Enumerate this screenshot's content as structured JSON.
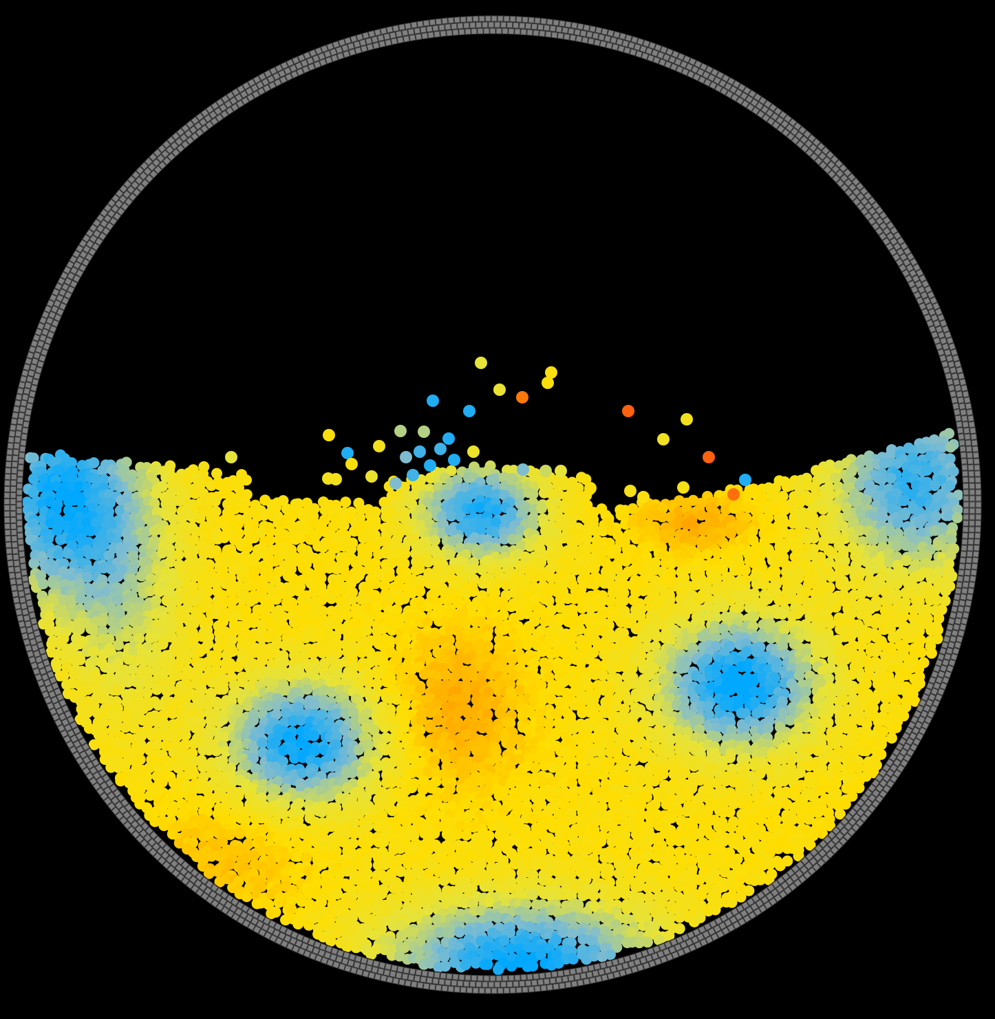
{
  "scene": {
    "subject": "sph-fluid-simulation-in-circular-container",
    "background_color": "#000000",
    "boundary_particle_color": "#808080",
    "boundary_particle_outline": "#3a3a3a",
    "colormap": [
      "#00a8ff",
      "#7fbcd0",
      "#e6e33a",
      "#ffdd00",
      "#ffa500",
      "#ff4a14"
    ],
    "fluid_color_low": "#00a8ff",
    "fluid_color_mid": "#ffdd00",
    "fluid_color_high": "#ff4a14"
  }
}
